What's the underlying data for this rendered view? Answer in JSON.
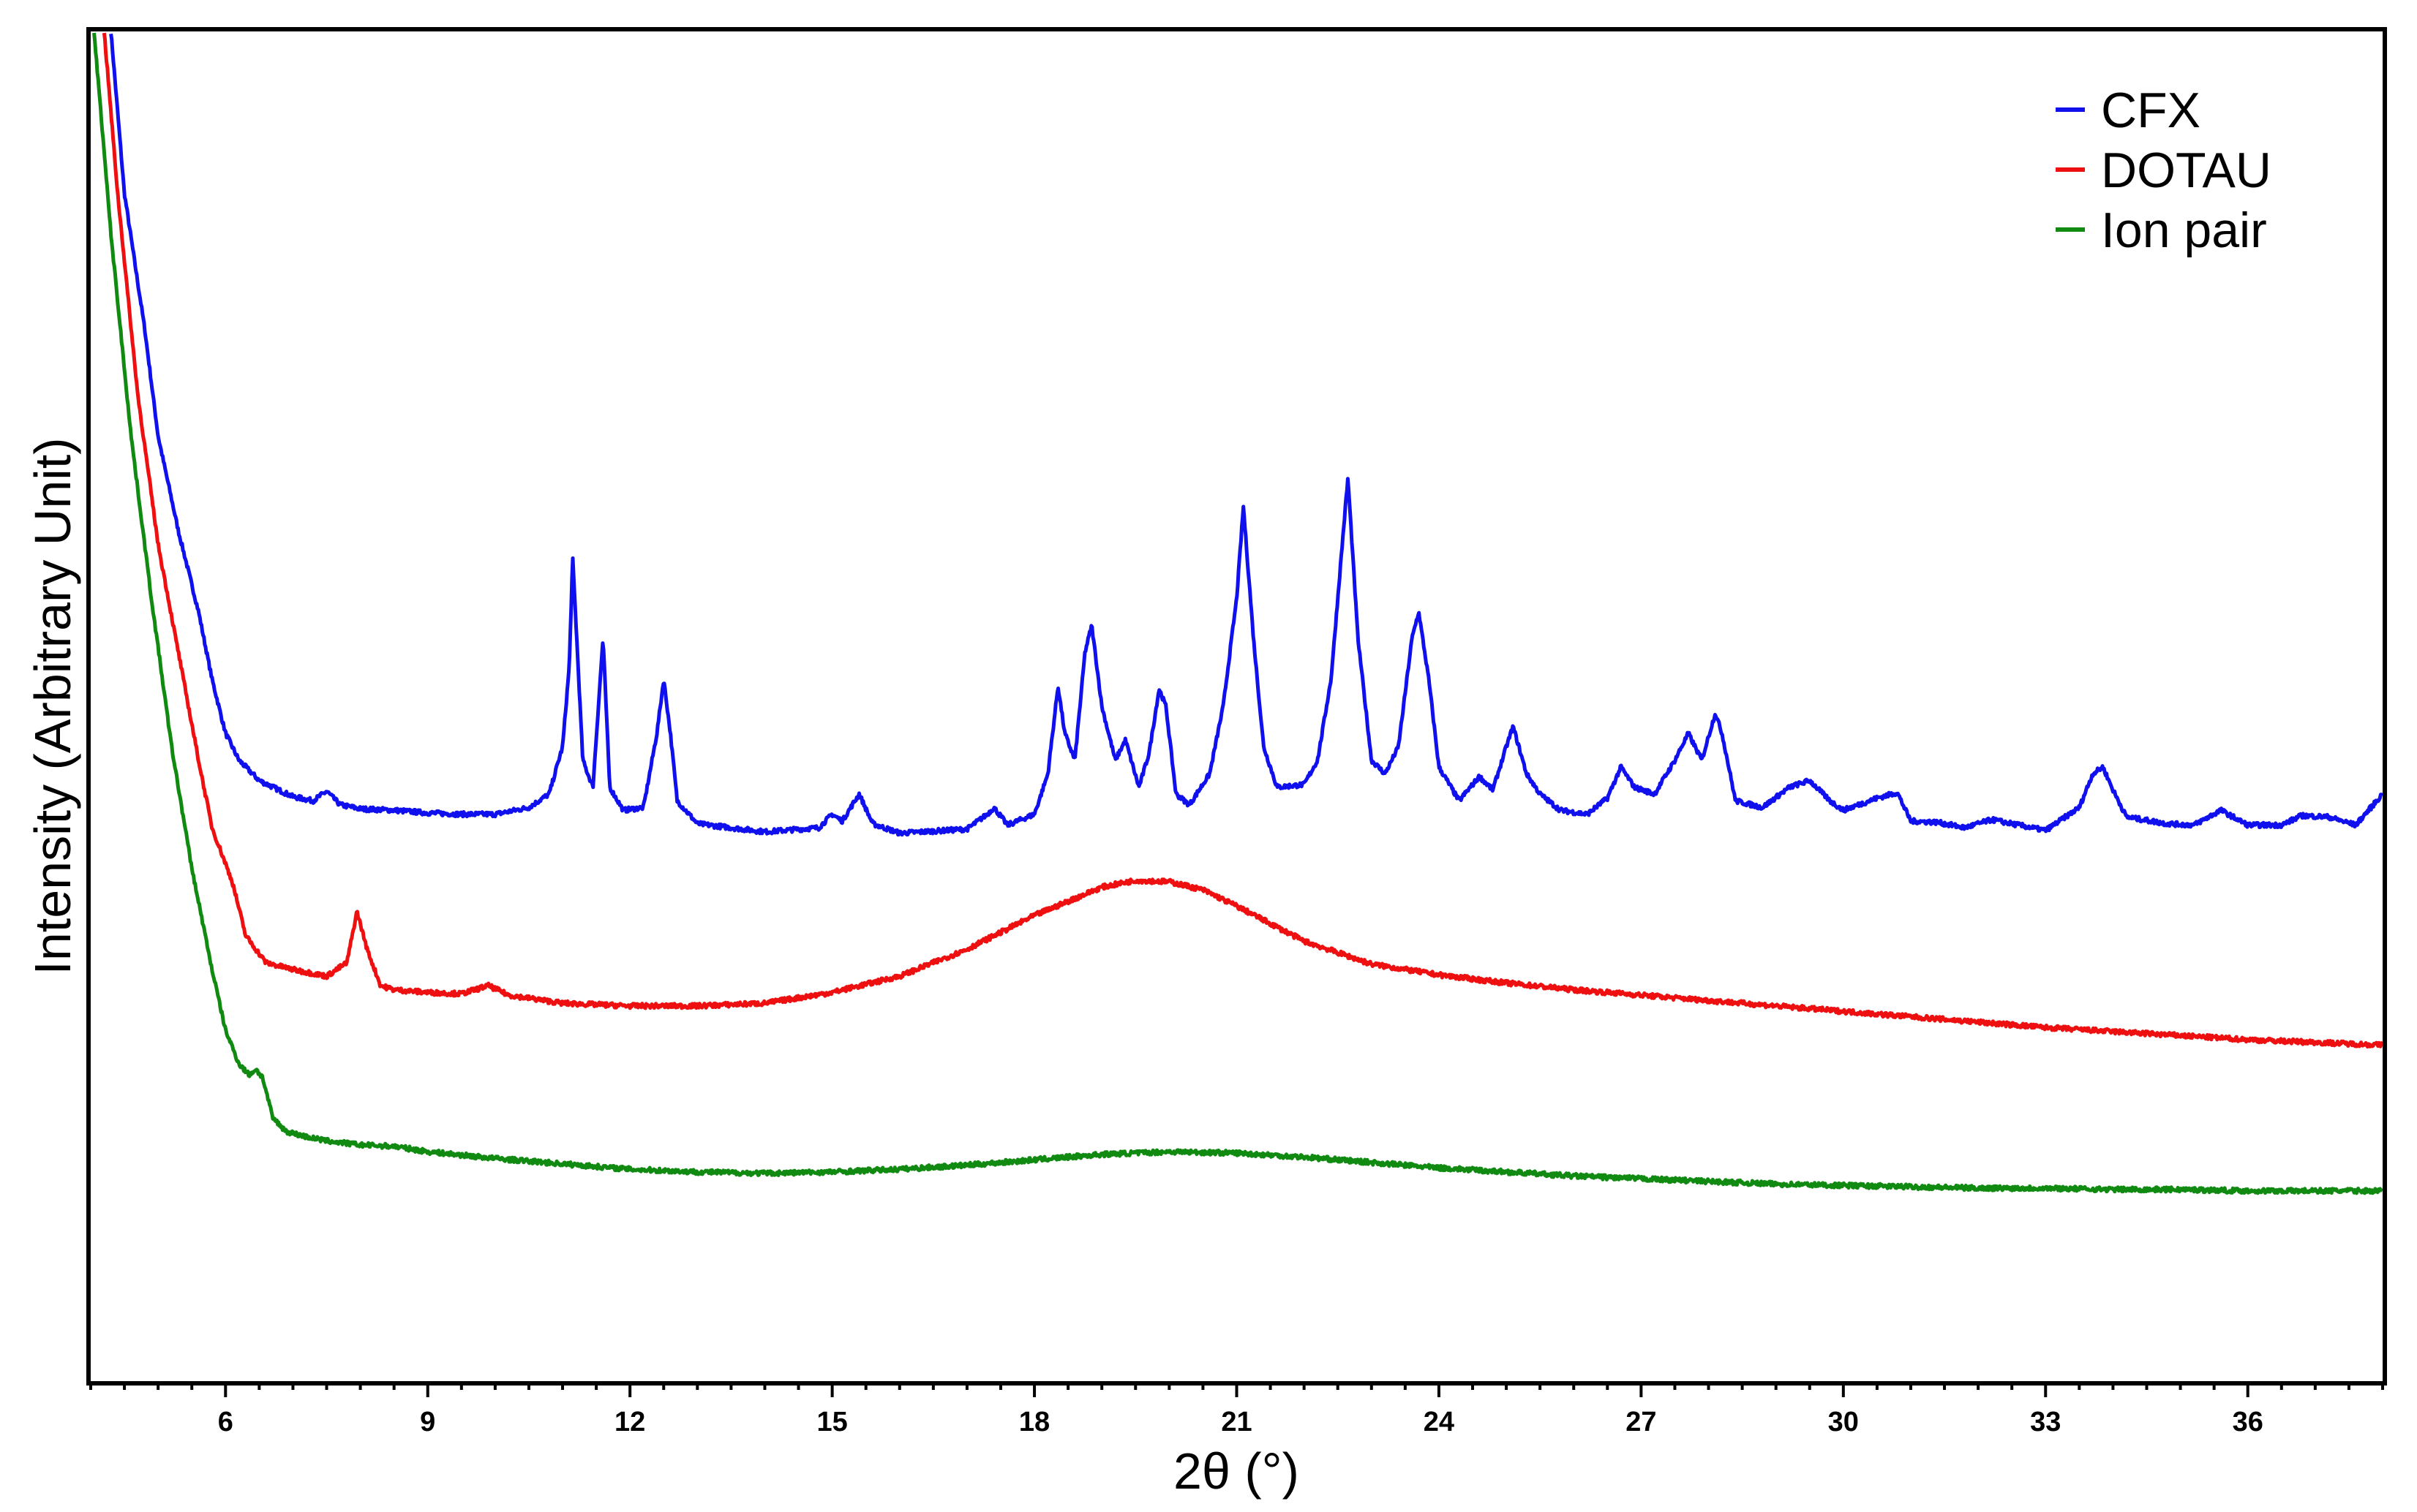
{
  "chart_data": {
    "type": "line",
    "title": "",
    "xlabel": "2θ (°)",
    "ylabel": "Intensity (Arbitrary Unit)",
    "xlim": [
      4.0,
      38.0
    ],
    "xticks": [
      6,
      9,
      12,
      15,
      18,
      21,
      24,
      27,
      30,
      33,
      36
    ],
    "xtick_labels": [
      "6",
      "9",
      "12",
      "15",
      "18",
      "21",
      "24",
      "27",
      "30",
      "33",
      "36"
    ],
    "xminor_step": 0.5,
    "yticks_shown": false,
    "grid": false,
    "legend_position": "top-right",
    "series": [
      {
        "name": "CFX",
        "color": "#1010ee",
        "points": [
          [
            4.3,
            100
          ],
          [
            4.5,
            88
          ],
          [
            4.8,
            78
          ],
          [
            5.0,
            70
          ],
          [
            5.3,
            63
          ],
          [
            5.6,
            57
          ],
          [
            5.8,
            52
          ],
          [
            6.0,
            48
          ],
          [
            6.2,
            46
          ],
          [
            6.5,
            44.5
          ],
          [
            7.0,
            43.3
          ],
          [
            7.3,
            43.0
          ],
          [
            7.5,
            43.7
          ],
          [
            7.7,
            42.7
          ],
          [
            8.0,
            42.4
          ],
          [
            8.5,
            42.3
          ],
          [
            9.0,
            42.1
          ],
          [
            9.5,
            42.0
          ],
          [
            10.0,
            42.0
          ],
          [
            10.5,
            42.5
          ],
          [
            10.8,
            43.5
          ],
          [
            11.0,
            47
          ],
          [
            11.1,
            53
          ],
          [
            11.15,
            61
          ],
          [
            11.3,
            46
          ],
          [
            11.45,
            44
          ],
          [
            11.6,
            55
          ],
          [
            11.7,
            44
          ],
          [
            11.9,
            42.3
          ],
          [
            12.2,
            42.5
          ],
          [
            12.4,
            48
          ],
          [
            12.5,
            52
          ],
          [
            12.6,
            48
          ],
          [
            12.7,
            43
          ],
          [
            13.0,
            41.3
          ],
          [
            14.0,
            40.7
          ],
          [
            14.8,
            41
          ],
          [
            15.0,
            42
          ],
          [
            15.15,
            41.5
          ],
          [
            15.4,
            43.5
          ],
          [
            15.6,
            41.3
          ],
          [
            16.0,
            40.6
          ],
          [
            17.0,
            40.9
          ],
          [
            17.3,
            42
          ],
          [
            17.4,
            42.5
          ],
          [
            17.6,
            41.2
          ],
          [
            18.0,
            42
          ],
          [
            18.2,
            45
          ],
          [
            18.35,
            51.5
          ],
          [
            18.45,
            48
          ],
          [
            18.6,
            46
          ],
          [
            18.75,
            54
          ],
          [
            18.85,
            56
          ],
          [
            19.0,
            50
          ],
          [
            19.2,
            46
          ],
          [
            19.35,
            47.5
          ],
          [
            19.55,
            44
          ],
          [
            19.7,
            46.5
          ],
          [
            19.85,
            51.3
          ],
          [
            19.95,
            50
          ],
          [
            20.1,
            43.5
          ],
          [
            20.3,
            42.7
          ],
          [
            20.6,
            45
          ],
          [
            20.8,
            50
          ],
          [
            21.0,
            58
          ],
          [
            21.1,
            64.8
          ],
          [
            21.25,
            55
          ],
          [
            21.4,
            47
          ],
          [
            21.6,
            44
          ],
          [
            22.0,
            44.2
          ],
          [
            22.2,
            46
          ],
          [
            22.4,
            52
          ],
          [
            22.55,
            61
          ],
          [
            22.65,
            66.9
          ],
          [
            22.8,
            55
          ],
          [
            23.0,
            46
          ],
          [
            23.2,
            45
          ],
          [
            23.4,
            47
          ],
          [
            23.6,
            55
          ],
          [
            23.7,
            57
          ],
          [
            23.85,
            52
          ],
          [
            24.0,
            45.5
          ],
          [
            24.3,
            43
          ],
          [
            24.6,
            44.8
          ],
          [
            24.8,
            43.8
          ],
          [
            25.0,
            47
          ],
          [
            25.1,
            48.5
          ],
          [
            25.3,
            45
          ],
          [
            25.5,
            43.5
          ],
          [
            25.8,
            42.3
          ],
          [
            26.2,
            42
          ],
          [
            26.5,
            43.2
          ],
          [
            26.7,
            45.5
          ],
          [
            26.9,
            44
          ],
          [
            27.2,
            43.5
          ],
          [
            27.5,
            46
          ],
          [
            27.7,
            48
          ],
          [
            27.9,
            46
          ],
          [
            28.1,
            49.5
          ],
          [
            28.2,
            48
          ],
          [
            28.4,
            43
          ],
          [
            28.8,
            42.5
          ],
          [
            29.2,
            44
          ],
          [
            29.5,
            44.5
          ],
          [
            29.8,
            43
          ],
          [
            30.0,
            42.3
          ],
          [
            30.5,
            43.2
          ],
          [
            30.8,
            43.6
          ],
          [
            31.0,
            41.5
          ],
          [
            31.4,
            41.4
          ],
          [
            31.8,
            41.0
          ],
          [
            32.2,
            41.6
          ],
          [
            32.6,
            41.2
          ],
          [
            33.0,
            40.8
          ],
          [
            33.5,
            42.5
          ],
          [
            33.7,
            45
          ],
          [
            33.85,
            45.5
          ],
          [
            34.0,
            43.8
          ],
          [
            34.2,
            41.8
          ],
          [
            34.8,
            41.3
          ],
          [
            35.2,
            41.2
          ],
          [
            35.6,
            42.3
          ],
          [
            36.0,
            41.2
          ],
          [
            36.5,
            41.2
          ],
          [
            36.8,
            41.9
          ],
          [
            37.2,
            41.8
          ],
          [
            37.6,
            41.2
          ],
          [
            38.0,
            43.5
          ]
        ]
      },
      {
        "name": "DOTAU",
        "color": "#ee1010",
        "points": [
          [
            4.2,
            100
          ],
          [
            4.4,
            88
          ],
          [
            4.7,
            73
          ],
          [
            5.0,
            62
          ],
          [
            5.3,
            54
          ],
          [
            5.6,
            46
          ],
          [
            5.8,
            41
          ],
          [
            6.1,
            37
          ],
          [
            6.3,
            33
          ],
          [
            6.6,
            31
          ],
          [
            7.0,
            30.5
          ],
          [
            7.5,
            30.0
          ],
          [
            7.8,
            31
          ],
          [
            7.95,
            34.8
          ],
          [
            8.1,
            32
          ],
          [
            8.3,
            29.3
          ],
          [
            8.5,
            29.0
          ],
          [
            9.0,
            28.8
          ],
          [
            9.5,
            28.7
          ],
          [
            9.9,
            29.3
          ],
          [
            10.2,
            28.6
          ],
          [
            11.0,
            28.0
          ],
          [
            12.0,
            27.8
          ],
          [
            13.0,
            27.8
          ],
          [
            14.0,
            28.0
          ],
          [
            15.0,
            28.8
          ],
          [
            16.0,
            30.0
          ],
          [
            17.0,
            32.0
          ],
          [
            18.0,
            34.5
          ],
          [
            19.0,
            36.6
          ],
          [
            19.5,
            37.1
          ],
          [
            20.0,
            37.0
          ],
          [
            20.5,
            36.4
          ],
          [
            21.0,
            35.2
          ],
          [
            22.0,
            32.6
          ],
          [
            23.0,
            30.9
          ],
          [
            24.0,
            30.1
          ],
          [
            25.0,
            29.5
          ],
          [
            26.0,
            29.0
          ],
          [
            27.0,
            28.6
          ],
          [
            28.0,
            28.2
          ],
          [
            29.0,
            27.8
          ],
          [
            30.0,
            27.4
          ],
          [
            31.0,
            27.0
          ],
          [
            32.0,
            26.6
          ],
          [
            33.0,
            26.2
          ],
          [
            34.0,
            25.9
          ],
          [
            35.0,
            25.6
          ],
          [
            36.0,
            25.3
          ],
          [
            37.0,
            25.1
          ],
          [
            38.0,
            24.9
          ]
        ]
      },
      {
        "name": "Ion pair",
        "color": "#108a10",
        "points": [
          [
            4.05,
            100
          ],
          [
            4.3,
            85
          ],
          [
            4.6,
            70
          ],
          [
            4.9,
            58
          ],
          [
            5.2,
            47
          ],
          [
            5.5,
            38
          ],
          [
            5.8,
            30.5
          ],
          [
            6.0,
            26
          ],
          [
            6.2,
            23.5
          ],
          [
            6.35,
            22.7
          ],
          [
            6.45,
            23.1
          ],
          [
            6.55,
            22.5
          ],
          [
            6.7,
            19.5
          ],
          [
            6.9,
            18.5
          ],
          [
            7.2,
            18.1
          ],
          [
            7.5,
            17.8
          ],
          [
            8.0,
            17.5
          ],
          [
            8.5,
            17.4
          ],
          [
            9.0,
            17.0
          ],
          [
            10.0,
            16.5
          ],
          [
            11.0,
            16.1
          ],
          [
            12.0,
            15.7
          ],
          [
            13.0,
            15.5
          ],
          [
            14.0,
            15.4
          ],
          [
            15.0,
            15.5
          ],
          [
            16.0,
            15.7
          ],
          [
            17.0,
            16.0
          ],
          [
            18.0,
            16.4
          ],
          [
            19.0,
            16.8
          ],
          [
            20.0,
            17.0
          ],
          [
            21.0,
            16.9
          ],
          [
            22.0,
            16.6
          ],
          [
            23.0,
            16.2
          ],
          [
            24.0,
            15.8
          ],
          [
            25.0,
            15.5
          ],
          [
            26.0,
            15.2
          ],
          [
            27.0,
            15.0
          ],
          [
            28.0,
            14.8
          ],
          [
            29.0,
            14.6
          ],
          [
            30.0,
            14.5
          ],
          [
            31.0,
            14.4
          ],
          [
            32.0,
            14.3
          ],
          [
            33.0,
            14.3
          ],
          [
            34.0,
            14.2
          ],
          [
            35.0,
            14.2
          ],
          [
            36.0,
            14.1
          ],
          [
            37.0,
            14.1
          ],
          [
            38.0,
            14.1
          ]
        ]
      }
    ]
  }
}
